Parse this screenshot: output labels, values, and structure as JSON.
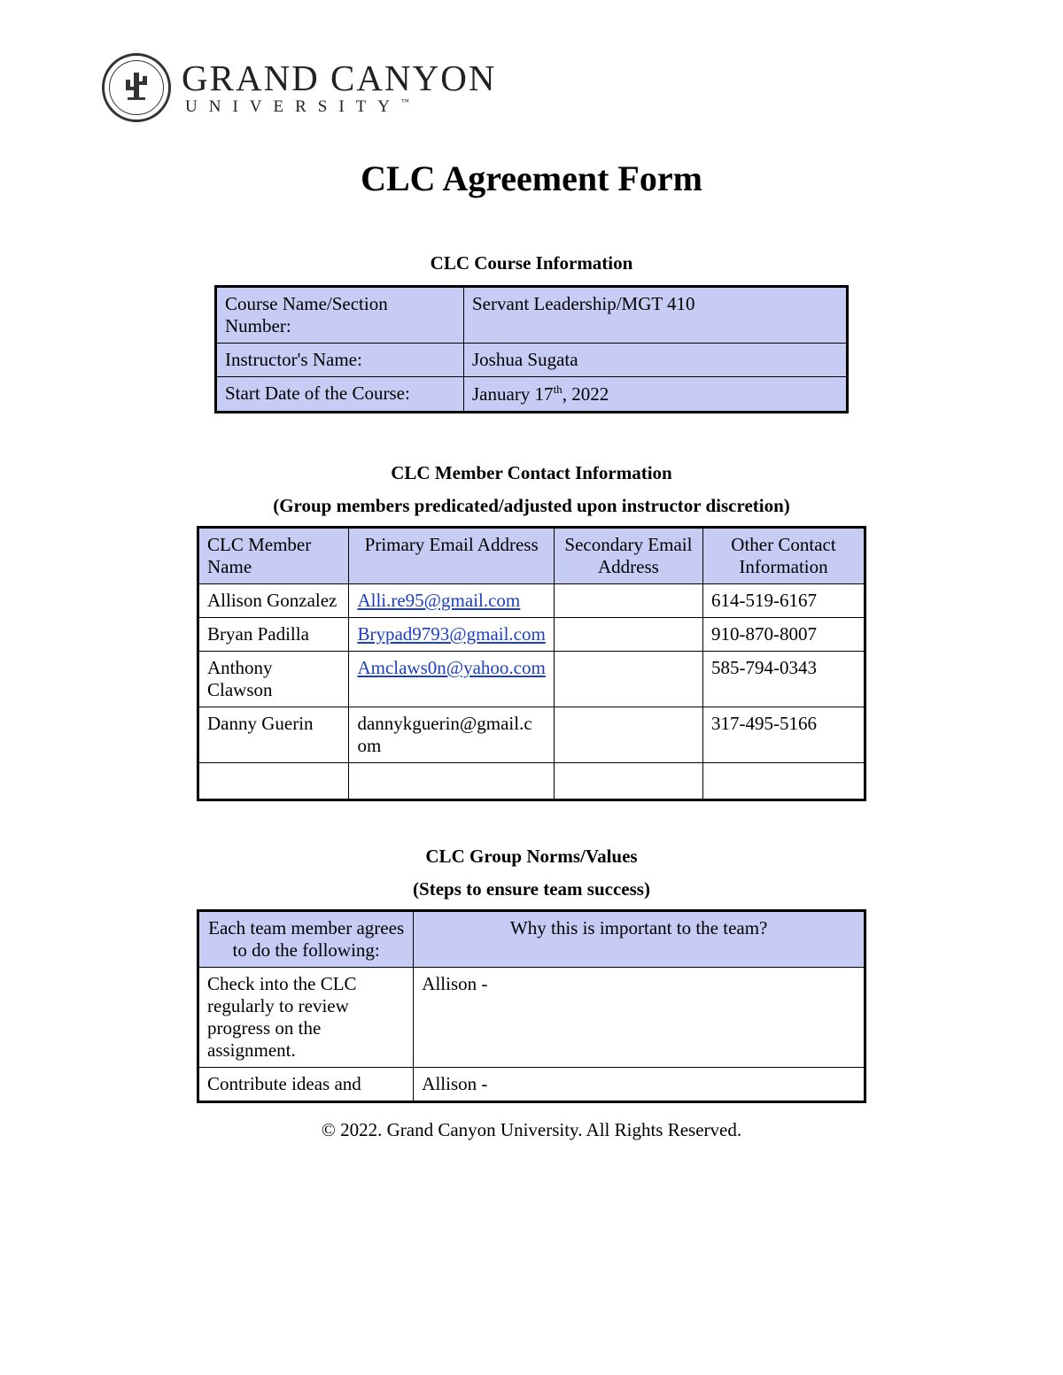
{
  "logo": {
    "main": "GRAND CANYON",
    "sub": "UNIVERSITY"
  },
  "title": "CLC Agreement Form",
  "course_section": {
    "heading": "CLC Course Information",
    "rows": [
      {
        "label": "Course Name/Section Number:",
        "value": "Servant Leadership/MGT 410"
      },
      {
        "label": "Instructor's Name:",
        "value": "Joshua Sugata"
      },
      {
        "label": "Start Date of the Course:",
        "value_prefix": "January 17",
        "value_sup": "th",
        "value_suffix": ", 2022"
      }
    ]
  },
  "contact_section": {
    "heading": "CLC Member Contact Information",
    "subheading": "(Group members predicated/adjusted upon instructor discretion)",
    "columns": [
      "CLC Member Name",
      "Primary Email Address",
      "Secondary Email Address",
      "Other Contact Information"
    ],
    "rows": [
      {
        "name": "Allison Gonzalez",
        "email": "Alli.re95@gmail.com",
        "email_link": true,
        "secondary": "",
        "other": "614-519-6167"
      },
      {
        "name": "Bryan Padilla",
        "email": "Brypad9793@gmail.com",
        "email_link": true,
        "secondary": "",
        "other": "910-870-8007"
      },
      {
        "name": "Anthony Clawson",
        "email": "Amclaws0n@yahoo.com",
        "email_link": true,
        "secondary": "",
        "other": "585-794-0343"
      },
      {
        "name": "Danny Guerin",
        "email": "dannykguerin@gmail.com",
        "email_link": false,
        "secondary": "",
        "other": "317-495-5166"
      },
      {
        "name": "",
        "email": "",
        "email_link": false,
        "secondary": "",
        "other": ""
      }
    ]
  },
  "norms_section": {
    "heading": "CLC Group Norms/Values",
    "subheading": "(Steps to ensure team success)",
    "columns": [
      "Each team member agrees to do the following:",
      "Why this is important to the team?"
    ],
    "rows": [
      {
        "left": "Check into the CLC regularly to review progress on the assignment.",
        "right": "Allison -"
      },
      {
        "left": "Contribute ideas and",
        "right": "Allison -"
      }
    ]
  },
  "footer": "© 2022. Grand Canyon University. All Rights Reserved.",
  "colors": {
    "header_bg": "#c7ccf4",
    "link": "#1a3fc4",
    "border": "#000000"
  }
}
